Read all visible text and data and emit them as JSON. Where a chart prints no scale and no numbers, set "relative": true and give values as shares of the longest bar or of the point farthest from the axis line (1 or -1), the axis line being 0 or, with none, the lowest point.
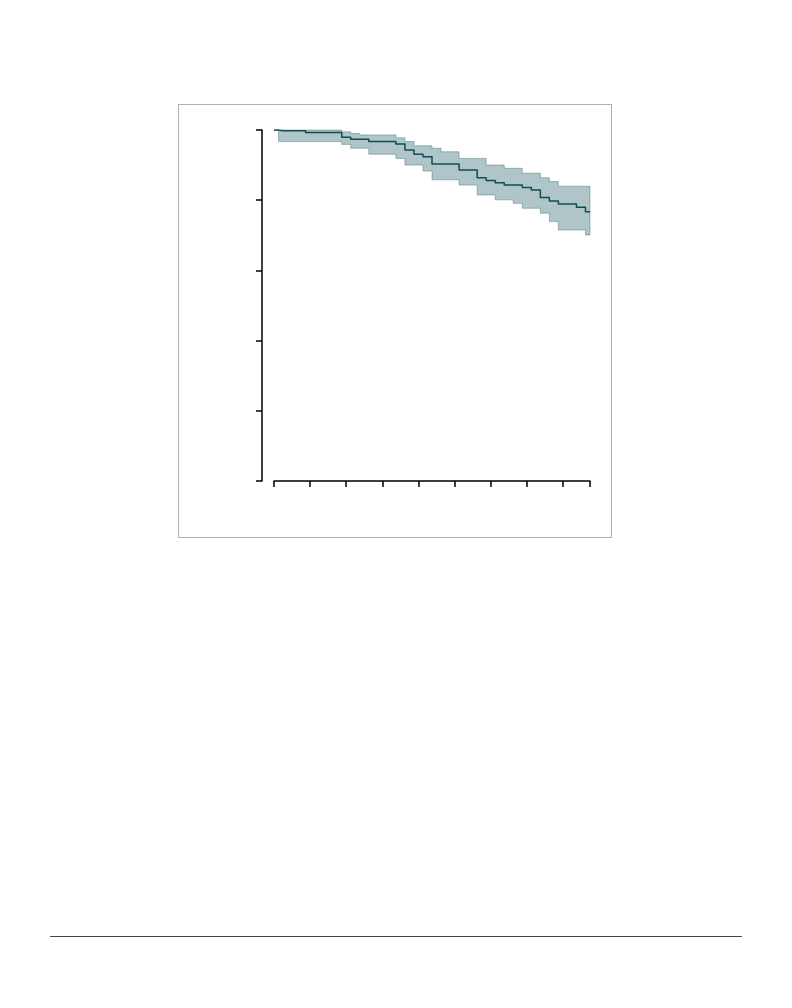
{
  "chart_data": {
    "type": "step",
    "relative": true,
    "categories": [
      null,
      null,
      null,
      null,
      null,
      null,
      null,
      null,
      null,
      null,
      null,
      null,
      null,
      null,
      null,
      null,
      null,
      null,
      null,
      null,
      null,
      null,
      null,
      null,
      null,
      null,
      null,
      null,
      null,
      null,
      null,
      null,
      null,
      null,
      null,
      null
    ],
    "series": [
      {
        "color": "#0d4f55",
        "values": [
          1.0,
          0.998,
          0.998,
          0.998,
          0.993,
          0.993,
          0.993,
          0.993,
          0.979,
          0.974,
          0.974,
          0.967,
          0.967,
          0.967,
          0.96,
          0.943,
          0.931,
          0.924,
          0.903,
          0.903,
          0.903,
          0.886,
          0.886,
          0.864,
          0.856,
          0.85,
          0.843,
          0.843,
          0.836,
          0.829,
          0.808,
          0.798,
          0.789,
          0.789,
          0.78,
          0.767
        ],
        "upper": [
          1.0,
          1.0,
          1.0,
          1.0,
          1.0,
          1.0,
          1.0,
          1.0,
          0.995,
          0.99,
          0.986,
          0.986,
          0.986,
          0.986,
          0.978,
          0.967,
          0.955,
          0.955,
          0.948,
          0.938,
          0.938,
          0.919,
          0.919,
          0.919,
          0.9,
          0.9,
          0.891,
          0.891,
          0.877,
          0.877,
          0.864,
          0.853,
          0.84,
          0.84,
          0.84,
          0.84
        ],
        "lower": [
          1.0,
          0.967,
          0.967,
          0.967,
          0.967,
          0.967,
          0.967,
          0.967,
          0.959,
          0.948,
          0.948,
          0.931,
          0.931,
          0.931,
          0.919,
          0.9,
          0.9,
          0.883,
          0.858,
          0.858,
          0.858,
          0.843,
          0.843,
          0.815,
          0.815,
          0.801,
          0.801,
          0.791,
          0.777,
          0.777,
          0.763,
          0.739,
          0.715,
          0.715,
          0.715,
          0.701
        ]
      }
    ],
    "grid": false,
    "line_style": "solid"
  }
}
